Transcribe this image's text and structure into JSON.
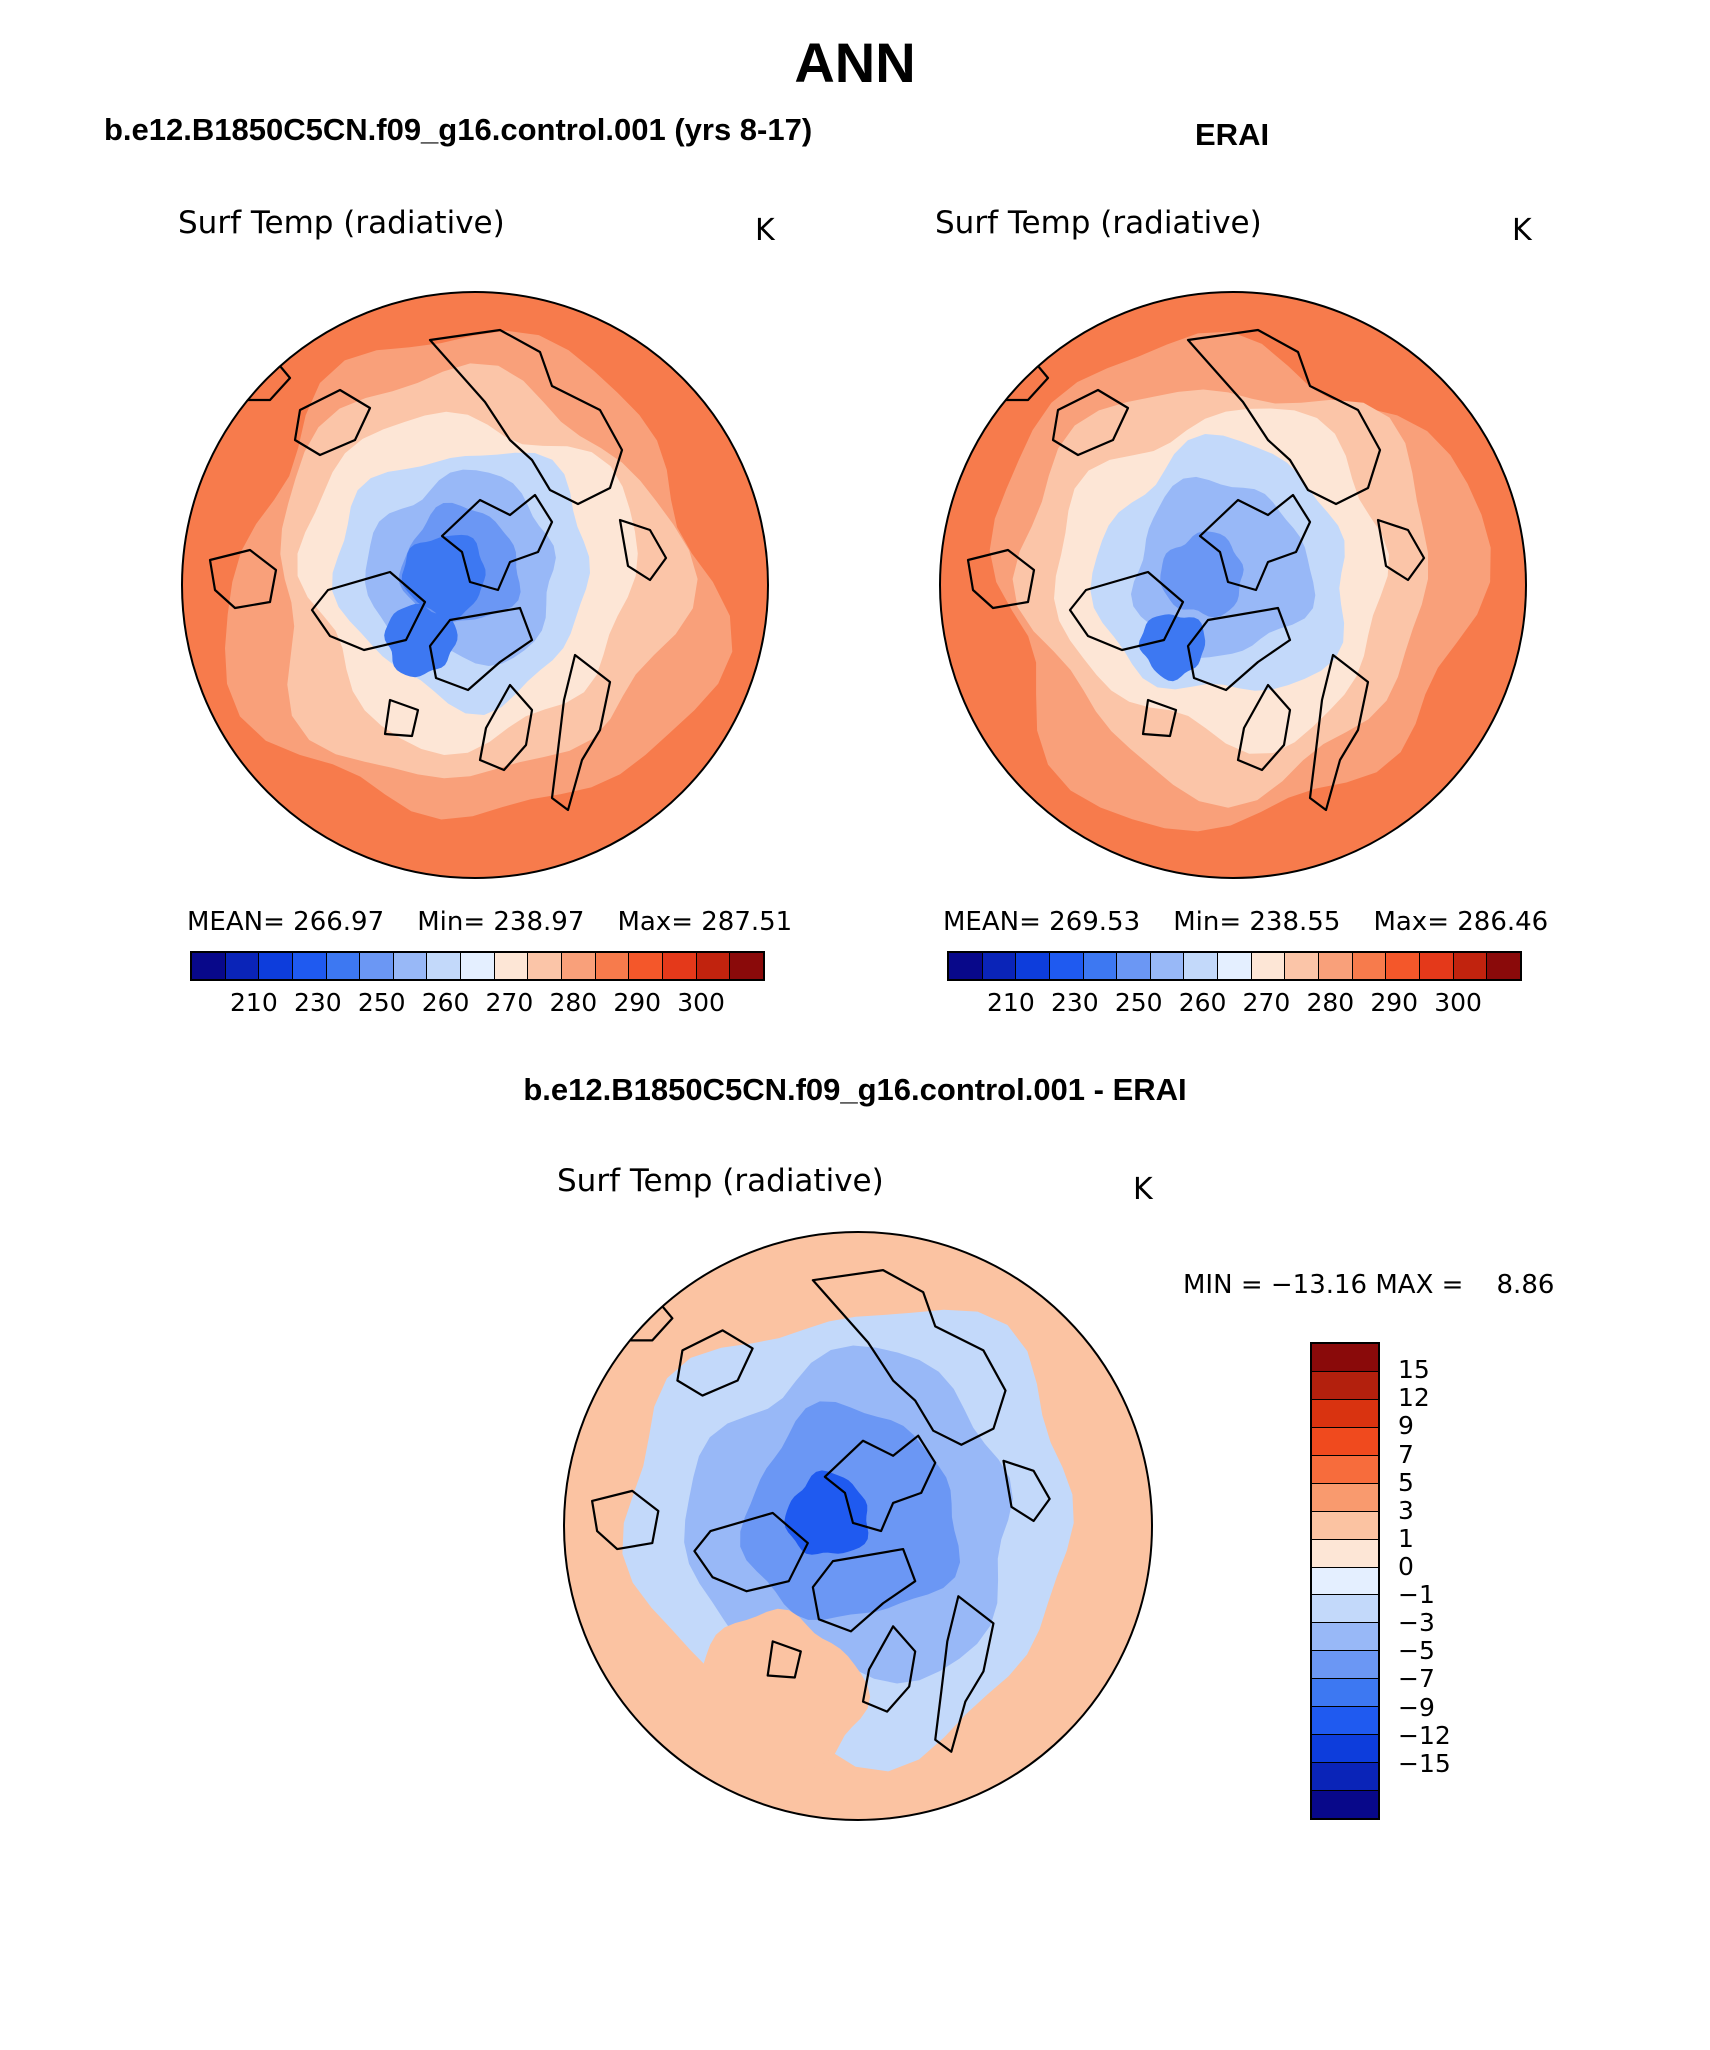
{
  "page_title": "ANN",
  "chart_data": [
    {
      "type": "polar-contour-map",
      "panel_title": "b.e12.B1850C5CN.f09_g16.control.001 (yrs 8-17)",
      "variable": "Surf Temp (radiative)",
      "units": "K",
      "stats": {
        "mean_label": "MEAN=",
        "mean": "266.97",
        "min_label": "Min=",
        "min": "238.97",
        "max_label": "Max=",
        "max": "287.51"
      },
      "colorbar_ticks": [
        "210",
        "230",
        "250",
        "260",
        "270",
        "280",
        "290",
        "300"
      ],
      "colors": [
        "#08088a",
        "#0a24b8",
        "#0d3ddc",
        "#1f5af0",
        "#3d78f2",
        "#6b97f4",
        "#98b8f7",
        "#c3d9fa",
        "#e4efff",
        "#fde6d6",
        "#fbc5a8",
        "#f9a07a",
        "#f77b4c",
        "#f4572a",
        "#e4391a",
        "#c1230e",
        "#8a0a0a"
      ],
      "bands": [
        0.82,
        0.69,
        0.56,
        0.43,
        0.32,
        0.2
      ],
      "band_colors": [
        "#f9a07a",
        "#fbc5a8",
        "#fde6d6",
        "#c3d9fa",
        "#98b8f7",
        "#6b97f4"
      ],
      "core_color": "#3d78f2"
    },
    {
      "type": "polar-contour-map",
      "panel_title": "ERAI",
      "variable": "Surf Temp (radiative)",
      "units": "K",
      "stats": {
        "mean_label": "MEAN=",
        "mean": "269.53",
        "min_label": "Min=",
        "min": "238.55",
        "max_label": "Max=",
        "max": "286.46"
      },
      "colorbar_ticks": [
        "210",
        "230",
        "250",
        "260",
        "270",
        "280",
        "290",
        "300"
      ],
      "colors": [
        "#08088a",
        "#0a24b8",
        "#0d3ddc",
        "#1f5af0",
        "#3d78f2",
        "#6b97f4",
        "#98b8f7",
        "#c3d9fa",
        "#e4efff",
        "#fde6d6",
        "#fbc5a8",
        "#f9a07a",
        "#f77b4c",
        "#f4572a",
        "#e4391a",
        "#c1230e",
        "#8a0a0a"
      ],
      "bands": [
        0.82,
        0.69,
        0.56,
        0.43,
        0.3
      ],
      "band_colors": [
        "#f9a07a",
        "#fbc5a8",
        "#fde6d6",
        "#c3d9fa",
        "#98b8f7"
      ],
      "core_color": "#6b97f4"
    },
    {
      "type": "polar-contour-map",
      "panel_title": "b.e12.B1850C5CN.f09_g16.control.001 - ERAI",
      "variable": "Surf Temp (radiative)",
      "units": "K",
      "stats": {
        "min_label": "MIN =",
        "min": "−13.16",
        "max_label": "MAX =",
        "max": "8.86"
      },
      "colorbar_ticks": [
        "15",
        "12",
        "9",
        "7",
        "5",
        "3",
        "1",
        "0",
        "−1",
        "−3",
        "−5",
        "−7",
        "−9",
        "−12",
        "−15"
      ],
      "colors": [
        "#8a0a0a",
        "#b3200d",
        "#d93310",
        "#f04a1e",
        "#f76c3c",
        "#f99a6e",
        "#fbc3a2",
        "#fde6d6",
        "#e4efff",
        "#c3d9fa",
        "#98b8f7",
        "#6b97f4",
        "#3d78f2",
        "#1f5af0",
        "#0d3ddc",
        "#0a24b8",
        "#08088a"
      ],
      "bands": [
        0.75,
        0.55,
        0.36
      ],
      "band_colors": [
        "#c3d9fa",
        "#98b8f7",
        "#6b97f4"
      ],
      "core_color": "#1f5af0"
    }
  ]
}
